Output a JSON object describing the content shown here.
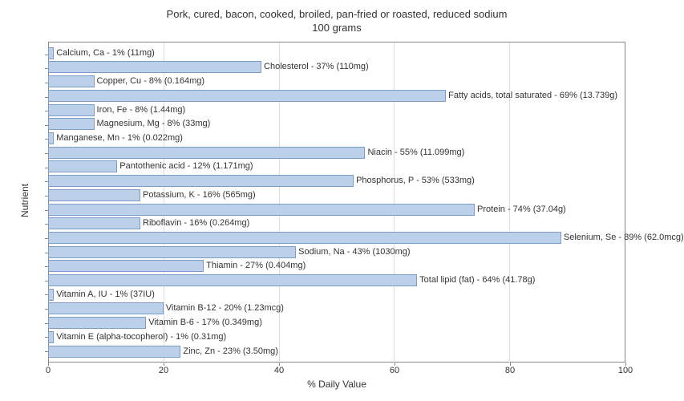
{
  "chart": {
    "type": "bar",
    "title_line1": "Pork, cured, bacon, cooked, broiled, pan-fried or roasted, reduced sodium",
    "title_line2": "100 grams",
    "xlabel": "% Daily Value",
    "ylabel": "Nutrient",
    "xlim": [
      0,
      100
    ],
    "xtick_step": 20,
    "xticks": [
      "0",
      "20",
      "40",
      "60",
      "80",
      "100"
    ],
    "bar_fill": "#bdd0ea",
    "bar_border": "#7a9cc6",
    "grid_color": "#dddddd",
    "axis_color": "#888888",
    "background_color": "#ffffff",
    "title_fontsize": 13,
    "label_fontsize": 12,
    "tick_fontsize": 11,
    "bar_label_fontsize": 11,
    "nutrients": [
      {
        "label": "Calcium, Ca - 1% (11mg)",
        "value": 1
      },
      {
        "label": "Cholesterol - 37% (110mg)",
        "value": 37
      },
      {
        "label": "Copper, Cu - 8% (0.164mg)",
        "value": 8
      },
      {
        "label": "Fatty acids, total saturated - 69% (13.739g)",
        "value": 69
      },
      {
        "label": "Iron, Fe - 8% (1.44mg)",
        "value": 8
      },
      {
        "label": "Magnesium, Mg - 8% (33mg)",
        "value": 8
      },
      {
        "label": "Manganese, Mn - 1% (0.022mg)",
        "value": 1
      },
      {
        "label": "Niacin - 55% (11.099mg)",
        "value": 55
      },
      {
        "label": "Pantothenic acid - 12% (1.171mg)",
        "value": 12
      },
      {
        "label": "Phosphorus, P - 53% (533mg)",
        "value": 53
      },
      {
        "label": "Potassium, K - 16% (565mg)",
        "value": 16
      },
      {
        "label": "Protein - 74% (37.04g)",
        "value": 74
      },
      {
        "label": "Riboflavin - 16% (0.264mg)",
        "value": 16
      },
      {
        "label": "Selenium, Se - 89% (62.0mcg)",
        "value": 89
      },
      {
        "label": "Sodium, Na - 43% (1030mg)",
        "value": 43
      },
      {
        "label": "Thiamin - 27% (0.404mg)",
        "value": 27
      },
      {
        "label": "Total lipid (fat) - 64% (41.78g)",
        "value": 64
      },
      {
        "label": "Vitamin A, IU - 1% (37IU)",
        "value": 1
      },
      {
        "label": "Vitamin B-12 - 20% (1.23mcg)",
        "value": 20
      },
      {
        "label": "Vitamin B-6 - 17% (0.349mg)",
        "value": 17
      },
      {
        "label": "Vitamin E (alpha-tocopherol) - 1% (0.31mg)",
        "value": 1
      },
      {
        "label": "Zinc, Zn - 23% (3.50mg)",
        "value": 23
      }
    ]
  }
}
